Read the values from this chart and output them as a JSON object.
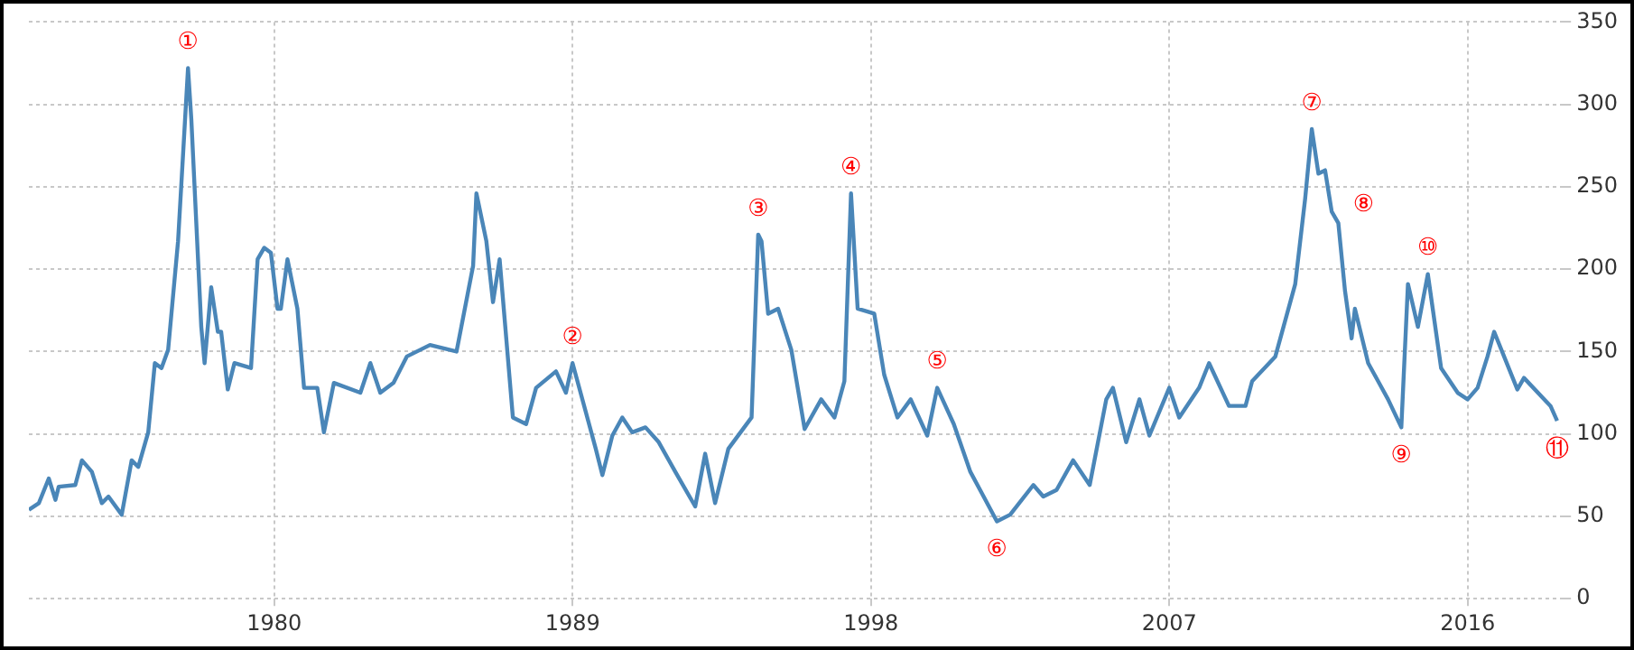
{
  "chart_data": {
    "type": "line",
    "x": [
      1972.6,
      1972.9,
      1973.2,
      1973.4,
      1973.5,
      1974.0,
      1974.2,
      1974.5,
      1974.8,
      1975.0,
      1975.4,
      1975.5,
      1975.7,
      1975.9,
      1976.2,
      1976.4,
      1976.6,
      1976.8,
      1977.1,
      1977.4,
      1977.5,
      1977.8,
      1977.9,
      1978.1,
      1978.3,
      1978.4,
      1978.6,
      1978.8,
      1979.3,
      1979.5,
      1979.7,
      1979.9,
      1980.1,
      1980.2,
      1980.4,
      1980.7,
      1980.9,
      1981.3,
      1981.5,
      1981.8,
      1982.6,
      1982.9,
      1983.2,
      1983.6,
      1984.0,
      1984.7,
      1985.5,
      1986.0,
      1986.1,
      1986.4,
      1986.6,
      1986.8,
      1987.2,
      1987.6,
      1987.9,
      1988.5,
      1988.8,
      1989.0,
      1989.7,
      1989.9,
      1990.2,
      1990.5,
      1990.8,
      1991.2,
      1991.6,
      1992.1,
      1992.7,
      1993.0,
      1993.3,
      1993.7,
      1994.4,
      1994.6,
      1994.7,
      1994.9,
      1995.2,
      1995.6,
      1996.0,
      1996.5,
      1996.9,
      1997.2,
      1997.4,
      1997.6,
      1998.1,
      1998.4,
      1998.8,
      1999.2,
      1999.7,
      2000.0,
      2000.5,
      2001.0,
      2001.4,
      2001.8,
      2002.2,
      2002.9,
      2003.2,
      2003.6,
      2004.1,
      2004.6,
      2005.1,
      2005.3,
      2005.7,
      2006.1,
      2006.4,
      2007.0,
      2007.3,
      2007.9,
      2008.2,
      2008.8,
      2009.3,
      2009.5,
      2010.2,
      2010.8,
      2011.1,
      2011.3,
      2011.5,
      2011.7,
      2011.9,
      2012.1,
      2012.3,
      2012.5,
      2012.6,
      2013.0,
      2013.3,
      2013.6,
      2014.0,
      2014.2,
      2014.5,
      2014.8,
      2015.2,
      2015.7,
      2016.0,
      2016.3,
      2016.6,
      2016.8,
      2017.1,
      2017.5,
      2017.7,
      2018.5,
      2018.7
    ],
    "series": [
      {
        "color": "#4a86b8",
        "values": [
          54,
          58,
          73,
          60,
          68,
          69,
          84,
          77,
          58,
          62,
          51,
          62,
          84,
          80,
          101,
          143,
          140,
          151,
          217,
          322,
          291,
          165,
          143,
          189,
          162,
          162,
          127,
          143,
          140,
          206,
          213,
          210,
          176,
          176,
          206,
          176,
          128,
          128,
          101,
          131,
          125,
          143,
          125,
          131,
          147,
          154,
          150,
          202,
          246,
          217,
          180,
          206,
          110,
          106,
          128,
          138,
          125,
          143,
          91,
          75,
          99,
          110,
          101,
          104,
          95,
          77,
          56,
          88,
          58,
          91,
          110,
          221,
          217,
          173,
          176,
          151,
          103,
          121,
          110,
          132,
          246,
          176,
          173,
          136,
          110,
          121,
          99,
          128,
          106,
          77,
          62,
          47,
          51,
          69,
          62,
          66,
          84,
          69,
          121,
          128,
          95,
          121,
          99,
          128,
          110,
          128,
          143,
          117,
          117,
          132,
          147,
          191,
          243,
          285,
          258,
          260,
          235,
          228,
          187,
          158,
          176,
          143,
          132,
          121,
          104,
          191,
          165,
          197,
          140,
          125,
          121,
          128,
          147,
          162,
          147,
          127,
          134,
          117,
          108
        ]
      }
    ],
    "xlim": [
      1972.6,
      2018.9
    ],
    "xticks": [
      1980,
      1989,
      1998,
      2007,
      2016
    ],
    "ylim": [
      0,
      350
    ],
    "yticks": [
      0,
      50,
      100,
      150,
      200,
      250,
      300,
      350
    ],
    "grid": true,
    "line_style": "solid",
    "annotations": [
      {
        "text": "①",
        "x": 1977.4,
        "y": 322
      },
      {
        "text": "②",
        "x": 1989.0,
        "y": 143
      },
      {
        "text": "③",
        "x": 1994.6,
        "y": 221
      },
      {
        "text": "④",
        "x": 1997.4,
        "y": 246
      },
      {
        "text": "⑤",
        "x": 2000.0,
        "y": 128
      },
      {
        "text": "⑥",
        "x": 2001.8,
        "y": 47
      },
      {
        "text": "⑦",
        "x": 2011.3,
        "y": 285
      },
      {
        "text": "⑧",
        "x": 2012.1,
        "y": 228
      },
      {
        "text": "⑨",
        "x": 2014.0,
        "y": 104
      },
      {
        "text": "⑩",
        "x": 2014.8,
        "y": 197
      },
      {
        "text": "⑪",
        "x": 2018.7,
        "y": 108
      }
    ]
  }
}
